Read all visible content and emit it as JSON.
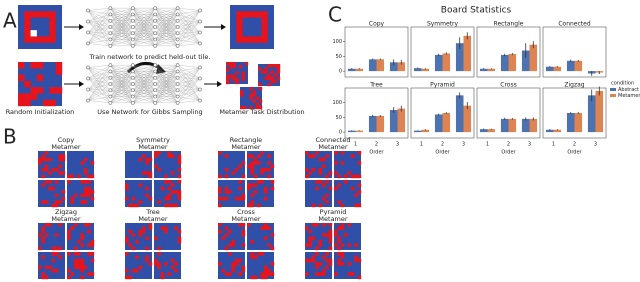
{
  "panel_a": {
    "label": "A",
    "train_caption": "Train network to predict held-out tile.",
    "random_init": "Random Initialization",
    "gibbs_caption": "Use Network for Gibbs Sampling",
    "distribution_caption": "Metamer Task Distribution"
  },
  "panel_b": {
    "label": "B",
    "groups": [
      {
        "title": "Copy",
        "subtitle": "Metamer"
      },
      {
        "title": "Symmetry",
        "subtitle": "Metamer"
      },
      {
        "title": "Rectangle",
        "subtitle": "Metamer"
      },
      {
        "title": "Connected",
        "subtitle": "Metamer"
      },
      {
        "title": "Zigzag",
        "subtitle": "Metamer"
      },
      {
        "title": "Tree",
        "subtitle": "Metamer"
      },
      {
        "title": "Cross",
        "subtitle": "Metamer"
      },
      {
        "title": "Pyramid",
        "subtitle": "Metamer"
      }
    ]
  },
  "panel_c": {
    "label": "C",
    "title": "Board Statistics",
    "legend_title": "condition",
    "conditions": [
      {
        "name": "Abstract",
        "color": "#4c72b0"
      },
      {
        "name": "Metamer",
        "color": "#dd8452"
      }
    ]
  },
  "chart_data": [
    {
      "type": "bar",
      "title": "Copy",
      "ylim": [
        -20,
        150
      ],
      "yticks": [
        0,
        50,
        100
      ],
      "series": [
        {
          "values": [
            8,
            40,
            30
          ],
          "errors": [
            2,
            3,
            10
          ]
        },
        {
          "values": [
            8,
            40,
            30
          ],
          "errors": [
            2,
            3,
            8
          ]
        }
      ]
    },
    {
      "type": "bar",
      "title": "Symmetry",
      "ylim": [
        -20,
        150
      ],
      "series": [
        {
          "values": [
            10,
            55,
            95
          ],
          "errors": [
            2,
            4,
            20
          ]
        },
        {
          "values": [
            8,
            60,
            120
          ],
          "errors": [
            2,
            4,
            12
          ]
        }
      ]
    },
    {
      "type": "bar",
      "title": "Rectangle",
      "ylim": [
        -20,
        150
      ],
      "series": [
        {
          "values": [
            8,
            55,
            70
          ],
          "errors": [
            2,
            4,
            25
          ]
        },
        {
          "values": [
            8,
            58,
            90
          ],
          "errors": [
            2,
            4,
            12
          ]
        }
      ]
    },
    {
      "type": "bar",
      "title": "Connected",
      "ylim": [
        -20,
        150
      ],
      "series": [
        {
          "values": [
            15,
            35,
            -8
          ],
          "errors": [
            2,
            4,
            8
          ]
        },
        {
          "values": [
            15,
            35,
            -5
          ],
          "errors": [
            2,
            3,
            5
          ]
        }
      ]
    },
    {
      "type": "bar",
      "title": "Tree",
      "ylim": [
        -20,
        150
      ],
      "yticks": [
        0,
        50,
        100
      ],
      "categories": [
        "1",
        "2",
        "3"
      ],
      "x_label": "Order",
      "series": [
        {
          "values": [
            5,
            55,
            75
          ],
          "errors": [
            1,
            4,
            10
          ]
        },
        {
          "values": [
            5,
            55,
            80
          ],
          "errors": [
            1,
            3,
            10
          ]
        }
      ]
    },
    {
      "type": "bar",
      "title": "Pyramid",
      "ylim": [
        -20,
        150
      ],
      "categories": [
        "1",
        "2",
        "3"
      ],
      "x_label": "Order",
      "series": [
        {
          "values": [
            5,
            60,
            125
          ],
          "errors": [
            1,
            3,
            10
          ]
        },
        {
          "values": [
            8,
            65,
            90
          ],
          "errors": [
            2,
            3,
            12
          ]
        }
      ]
    },
    {
      "type": "bar",
      "title": "Cross",
      "ylim": [
        -20,
        150
      ],
      "categories": [
        "1",
        "2",
        "3"
      ],
      "x_label": "Order",
      "series": [
        {
          "values": [
            10,
            45,
            45
          ],
          "errors": [
            2,
            4,
            5
          ]
        },
        {
          "values": [
            10,
            45,
            45
          ],
          "errors": [
            2,
            3,
            5
          ]
        }
      ]
    },
    {
      "type": "bar",
      "title": "Zigzag",
      "ylim": [
        -20,
        150
      ],
      "categories": [
        "1",
        "2",
        "3"
      ],
      "x_label": "Order",
      "series": [
        {
          "values": [
            8,
            65,
            125
          ],
          "errors": [
            2,
            3,
            20
          ]
        },
        {
          "values": [
            8,
            65,
            140
          ],
          "errors": [
            2,
            3,
            15
          ]
        }
      ]
    }
  ]
}
